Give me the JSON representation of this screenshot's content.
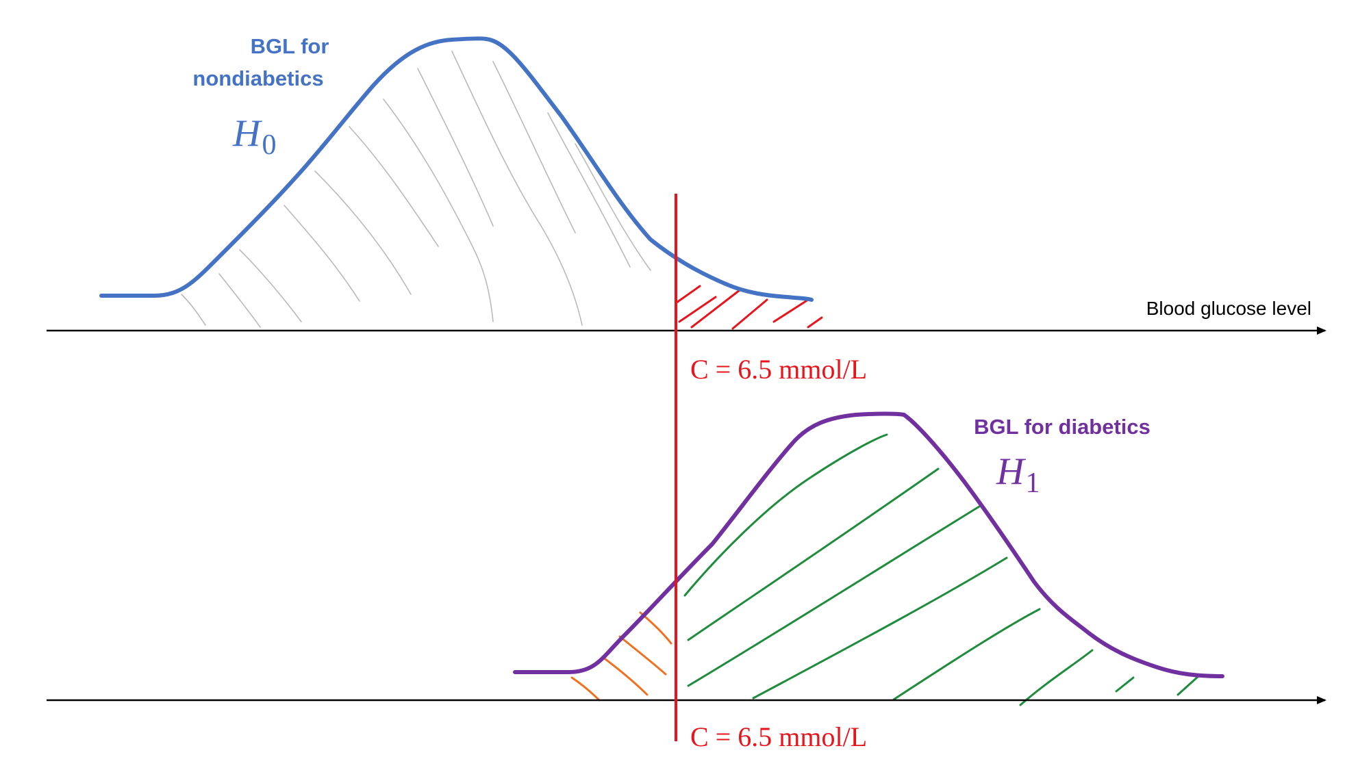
{
  "labels": {
    "h0_title_line1": "BGL for",
    "h0_title_line2": "nondiabetics",
    "h0_symbol": "H",
    "h0_subscript": "0",
    "h1_title": "BGL for diabetics",
    "h1_symbol": "H",
    "h1_subscript": "1",
    "axis_label": "Blood glucose level",
    "threshold_top": "C = 6.5 mmol/L",
    "threshold_bottom": "C = 6.5 mmol/L"
  },
  "colors": {
    "h0_curve": "#4472c4",
    "h1_curve": "#7030a0",
    "threshold": "#e8141c",
    "type_one_error_hatch": "#e8141c",
    "type_two_error_hatch": "#f07020",
    "power_hatch": "#1e8c3c",
    "acceptance_hatch": "#b4b4b4",
    "axis": "#000000"
  }
}
